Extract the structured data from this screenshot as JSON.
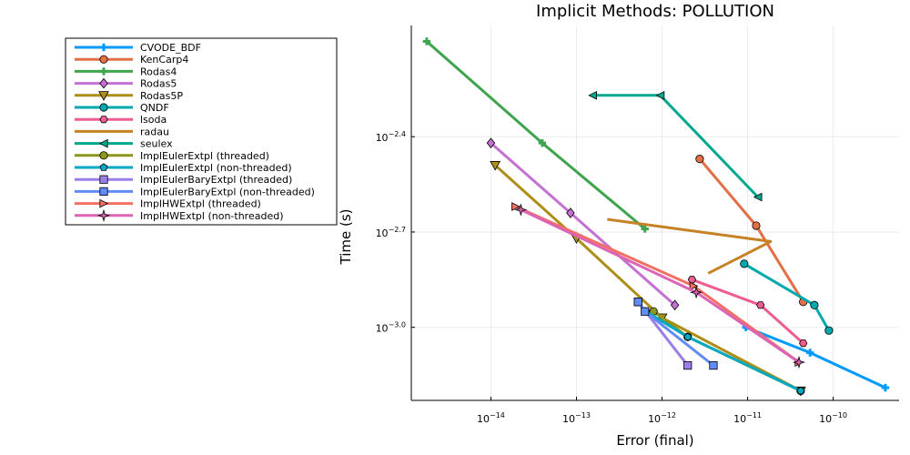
{
  "chart_data": {
    "type": "line",
    "title": "Implicit Methods: POLLUTION",
    "xlabel": "Error (final)",
    "ylabel": "Time (s)",
    "x_scale": "log10",
    "y_scale": "log10",
    "xlim_log10": [
      -14.93,
      -9.23
    ],
    "ylim_log10": [
      -3.23,
      -2.05
    ],
    "x_ticks": [
      {
        "value": -14,
        "label": "10^-14"
      },
      {
        "value": -13,
        "label": "10^-13"
      },
      {
        "value": -12,
        "label": "10^-12"
      },
      {
        "value": -11,
        "label": "10^-11"
      },
      {
        "value": -10,
        "label": "10^-10"
      }
    ],
    "y_ticks": [
      {
        "value": -2.4,
        "label": "10^-2.4"
      },
      {
        "value": -2.7,
        "label": "10^-2.7"
      },
      {
        "value": -3.0,
        "label": "10^-3.0"
      }
    ],
    "grid": true,
    "legend_position": "outside-left",
    "series": [
      {
        "name": "CVODE_BDF",
        "color": "#009AFA",
        "marker": "plus",
        "points": [
          [
            -9.39,
            -3.19
          ],
          [
            -10.27,
            -3.08
          ],
          [
            -11.02,
            -3.0
          ]
        ]
      },
      {
        "name": "KenCarp4",
        "color": "#E36F47",
        "marker": "circle",
        "points": [
          [
            -11.56,
            -2.47
          ],
          [
            -10.9,
            -2.68
          ],
          [
            -10.35,
            -2.92
          ]
        ]
      },
      {
        "name": "Rodas4",
        "color": "#3EA44E",
        "marker": "plus",
        "points": [
          [
            -14.75,
            -2.1
          ],
          [
            -13.4,
            -2.42
          ],
          [
            -12.2,
            -2.69
          ]
        ]
      },
      {
        "name": "Rodas5",
        "color": "#C371D2",
        "marker": "diamond",
        "points": [
          [
            -14.0,
            -2.42
          ],
          [
            -13.07,
            -2.64
          ],
          [
            -11.85,
            -2.93
          ]
        ]
      },
      {
        "name": "Rodas5P",
        "color": "#AC8E18",
        "marker": "triangle-down",
        "points": [
          [
            -13.95,
            -2.49
          ],
          [
            -13.0,
            -2.72
          ],
          [
            -12.0,
            -2.97
          ],
          [
            -10.38,
            -3.2
          ]
        ]
      },
      {
        "name": "QNDF",
        "color": "#00A9AD",
        "marker": "circle",
        "points": [
          [
            -11.04,
            -2.8
          ],
          [
            -10.22,
            -2.93
          ],
          [
            -10.05,
            -3.01
          ]
        ]
      },
      {
        "name": "lsoda",
        "color": "#ED5D92",
        "marker": "hexagon",
        "points": [
          [
            -11.65,
            -2.85
          ],
          [
            -10.85,
            -2.93
          ],
          [
            -10.35,
            -3.05
          ]
        ]
      },
      {
        "name": "radau",
        "color": "#C68225",
        "marker": "none",
        "points": [
          [
            -12.64,
            -2.66
          ],
          [
            -10.73,
            -2.73
          ],
          [
            -11.46,
            -2.83
          ]
        ]
      },
      {
        "name": "seulex",
        "color": "#00A98D",
        "marker": "triangle-left",
        "points": [
          [
            -12.81,
            -2.27
          ],
          [
            -12.02,
            -2.27
          ],
          [
            -10.88,
            -2.59
          ]
        ]
      },
      {
        "name": "ImplEulerExtpl (threaded)",
        "color": "#8E971D",
        "marker": "circle",
        "points": [
          [
            -12.1,
            -2.95
          ],
          [
            -11.7,
            -3.03
          ],
          [
            -10.38,
            -3.2
          ]
        ]
      },
      {
        "name": "ImplEulerExtpl (non-threaded)",
        "color": "#00A9C3",
        "marker": "pentagon",
        "points": [
          [
            -12.19,
            -2.95
          ],
          [
            -11.7,
            -3.03
          ],
          [
            -10.38,
            -3.2
          ]
        ]
      },
      {
        "name": "ImplEulerBaryExtpl (threaded)",
        "color": "#9B7FE9",
        "marker": "square",
        "points": [
          [
            -12.28,
            -2.92
          ],
          [
            -11.7,
            -3.12
          ]
        ]
      },
      {
        "name": "ImplEulerBaryExtpl (non-threaded)",
        "color": "#608CF6",
        "marker": "square",
        "points": [
          [
            -12.28,
            -2.92
          ],
          [
            -12.2,
            -2.95
          ],
          [
            -11.4,
            -3.12
          ]
        ]
      },
      {
        "name": "ImplHWExtpl (threaded)",
        "color": "#F16F63",
        "marker": "triangle-right",
        "points": [
          [
            -13.71,
            -2.62
          ],
          [
            -11.63,
            -2.87
          ],
          [
            -10.4,
            -3.11
          ]
        ]
      },
      {
        "name": "ImplHWExtpl (non-threaded)",
        "color": "#DD64B5",
        "marker": "star",
        "points": [
          [
            -13.65,
            -2.63
          ],
          [
            -11.6,
            -2.89
          ],
          [
            -10.4,
            -3.11
          ]
        ]
      }
    ],
    "legend_labels": [
      "CVODE_BDF",
      "KenCarp4",
      "Rodas4",
      "Rodas5",
      "Rodas5P",
      "QNDF",
      "lsoda",
      "radau",
      "seulex",
      "ImplEulerExtpl (threaded)",
      "ImplEulerExtpl (non-threaded)",
      "ImplEulerBaryExtpl (threaded)",
      "ImplEulerBaryExtpl (non-threaded)",
      "ImplHWExtpl (threaded)",
      "ImplHWExtpl (non-threaded)"
    ]
  }
}
